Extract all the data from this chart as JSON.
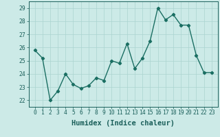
{
  "x": [
    0,
    1,
    2,
    3,
    4,
    5,
    6,
    7,
    8,
    9,
    10,
    11,
    12,
    13,
    14,
    15,
    16,
    17,
    18,
    19,
    20,
    21,
    22,
    23
  ],
  "y": [
    25.8,
    25.2,
    22.0,
    22.7,
    24.0,
    23.2,
    22.9,
    23.1,
    23.7,
    23.5,
    25.0,
    24.8,
    26.3,
    24.4,
    25.2,
    26.5,
    29.0,
    28.1,
    28.5,
    27.7,
    27.7,
    25.4,
    24.1,
    24.1
  ],
  "line_color": "#1a6e62",
  "marker": "D",
  "marker_size": 2.2,
  "linewidth": 1.0,
  "bg_color": "#cceae7",
  "grid_color": "#aad4d0",
  "xlabel": "Humidex (Indice chaleur)",
  "ylim": [
    21.5,
    29.5
  ],
  "yticks": [
    22,
    23,
    24,
    25,
    26,
    27,
    28,
    29
  ],
  "xticks": [
    0,
    1,
    2,
    3,
    4,
    5,
    6,
    7,
    8,
    9,
    10,
    11,
    12,
    13,
    14,
    15,
    16,
    17,
    18,
    19,
    20,
    21,
    22,
    23
  ],
  "tick_label_fontsize": 5.8,
  "xlabel_fontsize": 7.5,
  "text_color": "#1a5f5a"
}
